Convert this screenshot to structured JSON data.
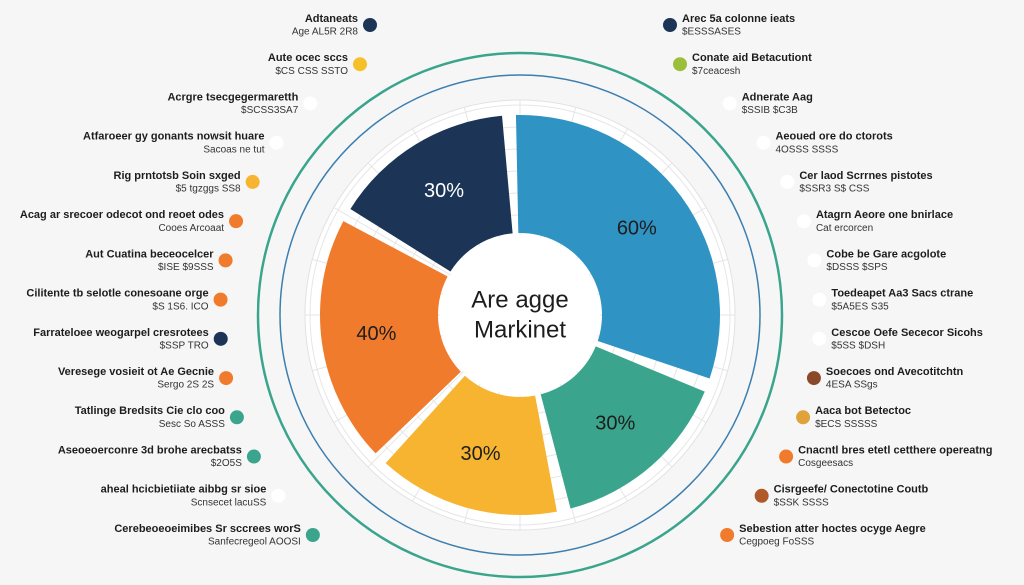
{
  "chart_data": {
    "type": "pie",
    "center_text": [
      "Are agge",
      "Markinet"
    ],
    "categories": [
      null,
      null,
      null,
      null,
      null
    ],
    "values": [
      30,
      60,
      30,
      30,
      40
    ],
    "value_labels": [
      "30%",
      "60%",
      "30%",
      "30%",
      "40%"
    ],
    "colors": [
      "#1c3557",
      "#2f93c4",
      "#3aa58c",
      "#f6b431",
      "#f07b2c"
    ],
    "left_labels": [
      {
        "text": "Adtaneats",
        "sub": "Age AL5R 2R8",
        "dot": "#1c3557"
      },
      {
        "text": "Aute ocec sccs",
        "sub": "$CS CSS SSTO",
        "dot": "#f6c02a"
      },
      {
        "text": "Acrgre tsecgegermaretth",
        "sub": "$SCSS3SA7",
        "dot": "#ffffff"
      },
      {
        "text": "Atfaroeer gy gonants nowsit huare",
        "sub": "Sacoas ne tut",
        "dot": "#ffffff"
      },
      {
        "text": "Rig prntotsb Soin sxged",
        "sub": "$5 tgzggs SS8",
        "dot": "#f6b431"
      },
      {
        "text": "Acag ar srecoer odecot ond reoet odes",
        "sub": "Cooes Arcoaat",
        "dot": "#f07b2c"
      },
      {
        "text": "Aut Cuatina beceocelcer",
        "sub": "$ISE $9SSS",
        "dot": "#f07b2c"
      },
      {
        "text": "Cilitente tb selotle conesoane orge",
        "sub": "$S 1S6. ICO",
        "dot": "#f07b2c"
      },
      {
        "text": "Farrateloee weogarpel cresrotees",
        "sub": "$SSP TRO",
        "dot": "#1c3557"
      },
      {
        "text": "Veresege vosieit ot Ae Gecnie",
        "sub": "Sergo 2S 2S",
        "dot": "#f07b2c"
      },
      {
        "text": "Tatlinge Bredsits Cie clo coo",
        "sub": "Sesc So ASSS",
        "dot": "#3aa58c"
      },
      {
        "text": "Aseoeoerconre 3d brohe arecbatss",
        "sub": "$2O5S",
        "dot": "#3aa58c"
      },
      {
        "text": "aheal hcicbietiiate aibbg sr sioe",
        "sub": "Scnsecet lacuSS",
        "dot": "#ffffff"
      },
      {
        "text": "Cerebeoeoeimibes Sr sccrees worS",
        "sub": "Sanfecregeol AOOSI",
        "dot": "#3aa58c"
      }
    ],
    "right_labels": [
      {
        "text": "Arec 5a colonne ieats",
        "sub": "$ESSSASES",
        "dot": "#1c3557"
      },
      {
        "text": "Conate aid Betacutiont",
        "sub": "$7ceacesh",
        "dot": "#9bbf3a"
      },
      {
        "text": "Adnerate Aag",
        "sub": "$SSIB $C3B",
        "dot": "#ffffff"
      },
      {
        "text": "Aeoued ore do ctorots",
        "sub": "4OSSS SSSS",
        "dot": "#ffffff"
      },
      {
        "text": "Cer laod Scrrnes pistotes",
        "sub": "$SSR3 S$ CSS",
        "dot": "#ffffff"
      },
      {
        "text": "Atagrn Aeore one bnirlace",
        "sub": "Cat ercorcen",
        "dot": "#ffffff"
      },
      {
        "text": "Cobe be Gare acgolote",
        "sub": "$DSSS $SPS",
        "dot": "#ffffff"
      },
      {
        "text": "Toedeapet Aa3 Sacs ctrane",
        "sub": "$5A5ES S35",
        "dot": "#ffffff"
      },
      {
        "text": "Cescoe Oefe Sececor Sicohs",
        "sub": "$5SS $DSH",
        "dot": "#ffffff"
      },
      {
        "text": "Soecoes ond Avecotitchtn",
        "sub": "4ESA SSgs",
        "dot": "#8a4a2a"
      },
      {
        "text": "Aaca bot Betectoc",
        "sub": "$ECS SSSSS",
        "dot": "#e0a23a"
      },
      {
        "text": "Cnacntl bres etetl cetthere opereatng",
        "sub": "Cosgeesacs",
        "dot": "#f07b2c"
      },
      {
        "text": "Cisrgeefe/ Conectotine Coutb",
        "sub": "$SSK SSSS",
        "dot": "#b05a2a"
      },
      {
        "text": "Sebestion atter hoctes ocyge Aegre",
        "sub": "Cegpoeg FoSSS",
        "dot": "#f07b2c"
      }
    ]
  }
}
